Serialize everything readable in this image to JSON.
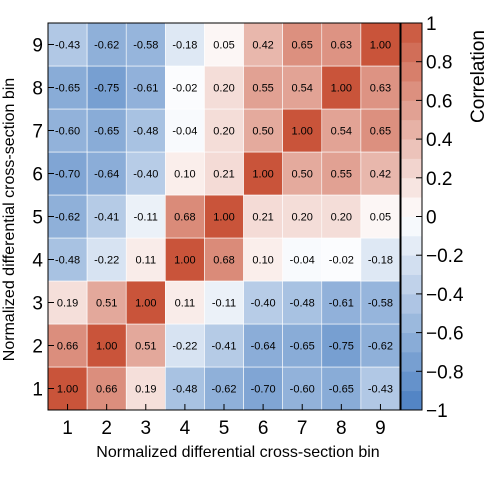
{
  "chart_data": {
    "type": "heatmap",
    "title": "",
    "xlabel": "Normalized differential cross-section bin",
    "ylabel": "Normalized differential cross-section bin",
    "zlabel": "Correlation",
    "x_categories": [
      "1",
      "2",
      "3",
      "4",
      "5",
      "6",
      "7",
      "8",
      "9"
    ],
    "y_categories": [
      "1",
      "2",
      "3",
      "4",
      "5",
      "6",
      "7",
      "8",
      "9"
    ],
    "zlim": [
      -1,
      1
    ],
    "z_ticks": [
      "-1",
      "-0.8",
      "-0.6",
      "-0.4",
      "-0.2",
      "0",
      "0.2",
      "0.4",
      "0.6",
      "0.8",
      "1"
    ],
    "colors": {
      "negative": "#4a7fc2",
      "neutral": "#ffffff",
      "positive": "#c9543a",
      "grid": "#ffffff"
    },
    "matrix": [
      [
        "1.00",
        "0.66",
        "0.19",
        "-0.48",
        "-0.62",
        "-0.70",
        "-0.60",
        "-0.65",
        "-0.43"
      ],
      [
        "0.66",
        "1.00",
        "0.51",
        "-0.22",
        "-0.41",
        "-0.64",
        "-0.65",
        "-0.75",
        "-0.62"
      ],
      [
        "0.19",
        "0.51",
        "1.00",
        "0.11",
        "-0.11",
        "-0.40",
        "-0.48",
        "-0.61",
        "-0.58"
      ],
      [
        "-0.48",
        "-0.22",
        "0.11",
        "1.00",
        "0.68",
        "0.10",
        "-0.04",
        "-0.02",
        "-0.18"
      ],
      [
        "-0.62",
        "-0.41",
        "-0.11",
        "0.68",
        "1.00",
        "0.21",
        "0.20",
        "0.20",
        "0.05"
      ],
      [
        "-0.70",
        "-0.64",
        "-0.40",
        "0.10",
        "0.21",
        "1.00",
        "0.50",
        "0.55",
        "0.42"
      ],
      [
        "-0.60",
        "-0.65",
        "-0.48",
        "-0.04",
        "0.20",
        "0.50",
        "1.00",
        "0.54",
        "0.65"
      ],
      [
        "-0.65",
        "-0.75",
        "-0.61",
        "-0.02",
        "0.20",
        "0.55",
        "0.54",
        "1.00",
        "0.63"
      ],
      [
        "-0.43",
        "-0.62",
        "-0.58",
        "-0.18",
        "0.05",
        "0.42",
        "0.65",
        "0.63",
        "1.00"
      ]
    ]
  }
}
